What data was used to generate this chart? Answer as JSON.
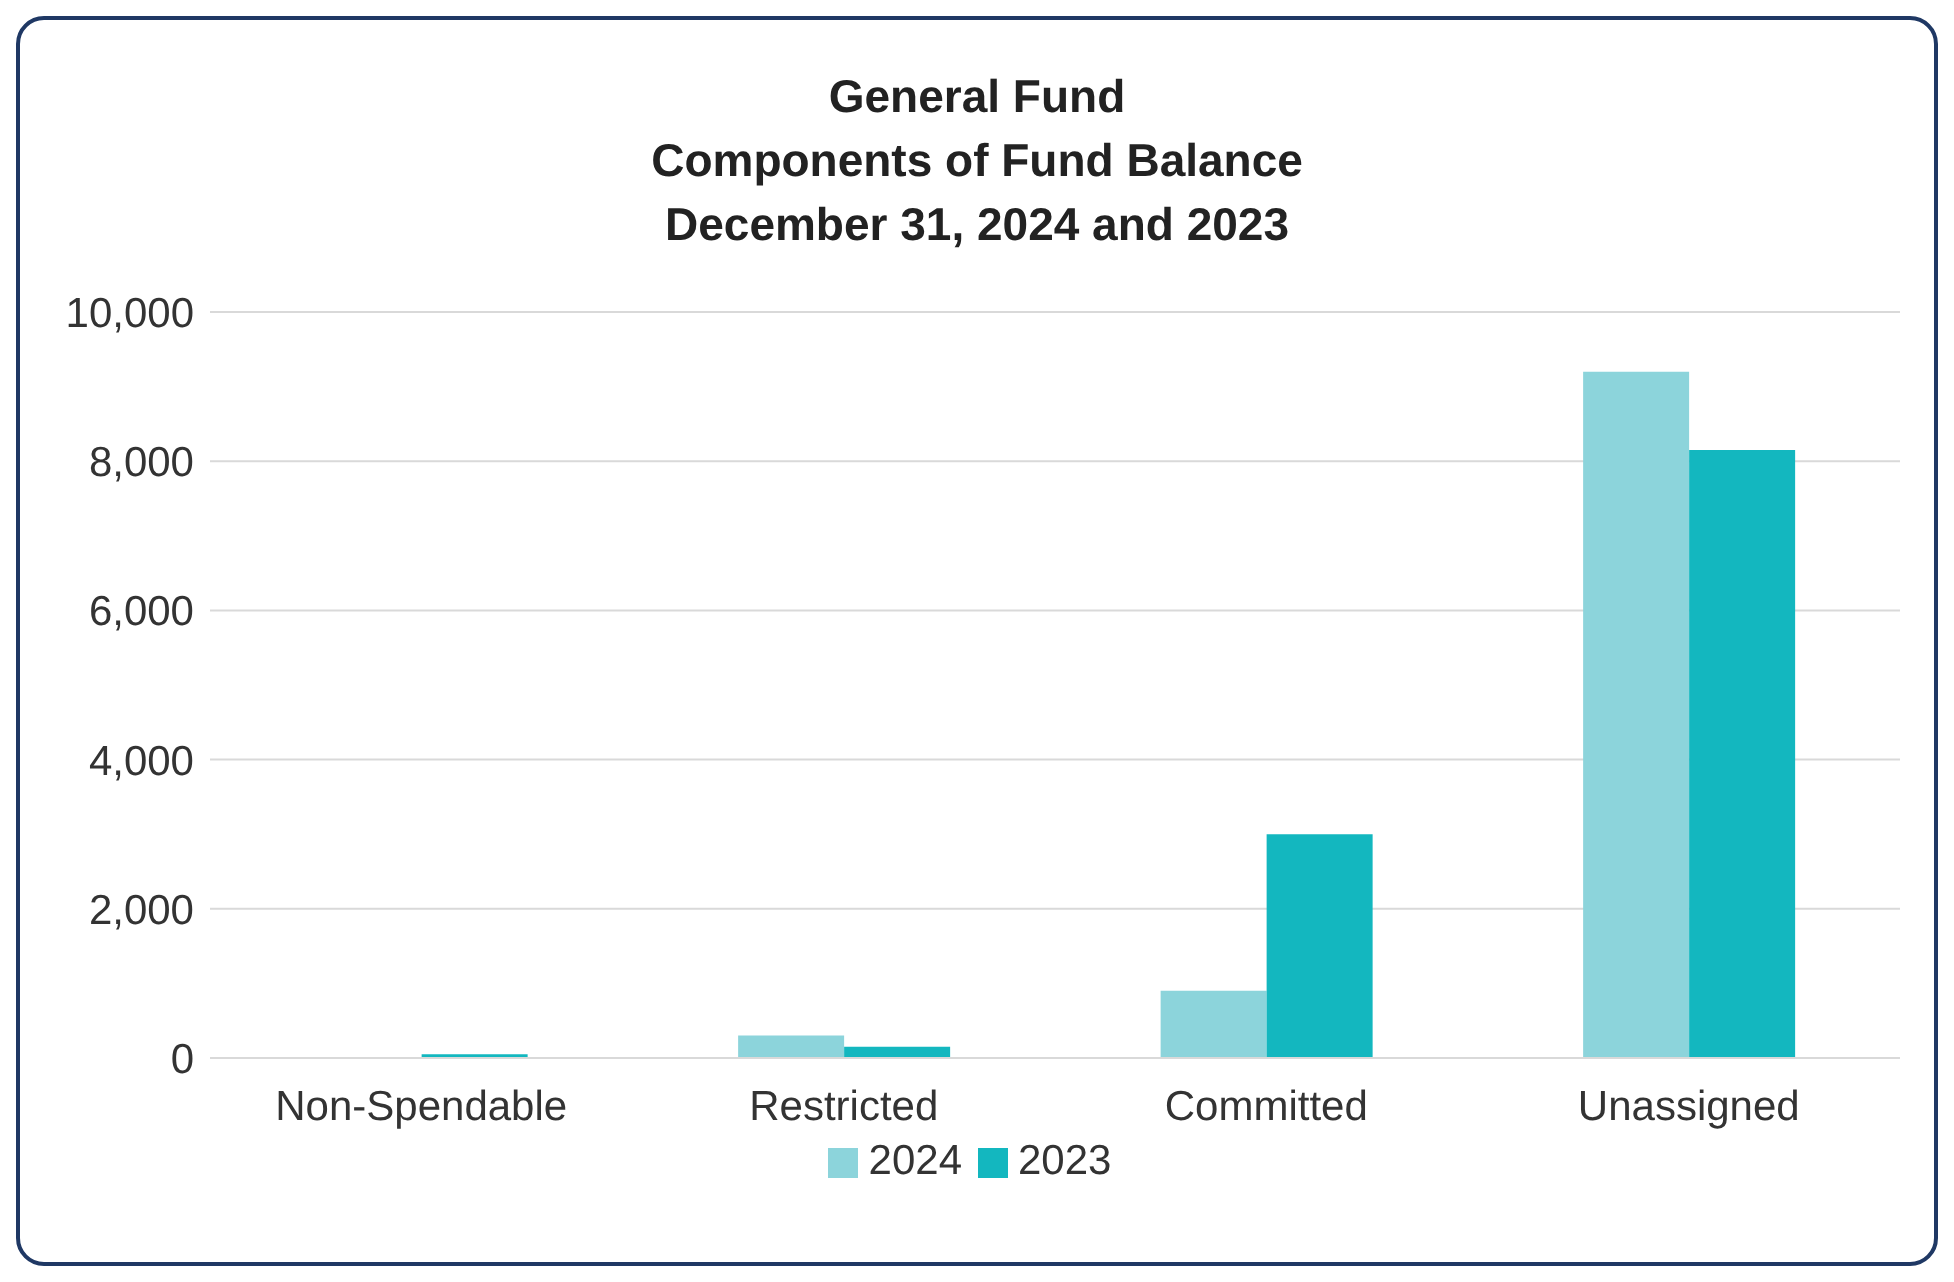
{
  "chart_data": {
    "type": "bar",
    "title": "General Fund\nComponents of Fund Balance\nDecember 31, 2024 and 2023",
    "categories": [
      "Non-Spendable",
      "Restricted",
      "Committed",
      "Unassigned"
    ],
    "series": [
      {
        "name": "2024",
        "color": "#8cd4db",
        "values": [
          0,
          300,
          900,
          9200
        ]
      },
      {
        "name": "2023",
        "color": "#13b7bf",
        "values": [
          50,
          150,
          3000,
          8150
        ]
      }
    ],
    "ylim": [
      0,
      10000
    ],
    "yticks": [
      0,
      {
        "value": 2000,
        "label": "2,000"
      },
      {
        "value": 4000,
        "label": "4,000"
      },
      {
        "value": 6000,
        "label": "6,000"
      },
      {
        "value": 8000,
        "label": "8,000"
      },
      {
        "value": 10000,
        "label": "10,000"
      }
    ],
    "grid": "y",
    "legend": "bottom"
  }
}
